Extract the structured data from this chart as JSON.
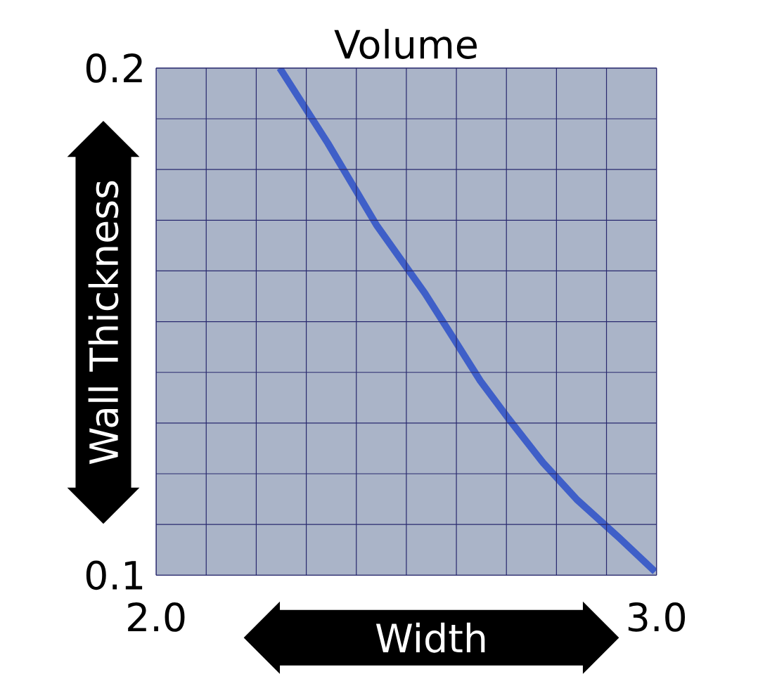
{
  "chart_data": {
    "type": "line",
    "title": "Volume",
    "xlabel": "Width",
    "ylabel": "Wall Thickness",
    "x": [
      2.247,
      2.343,
      2.44,
      2.537,
      2.593,
      2.648,
      2.704,
      2.773,
      2.842,
      2.925,
      2.997
    ],
    "series": [
      {
        "color": "#3f5fc8",
        "values": [
          0.2,
          0.1852,
          0.1691,
          0.1556,
          0.1469,
          0.1383,
          0.1309,
          0.1222,
          0.1148,
          0.1074,
          0.1007
        ]
      }
    ],
    "xlim": [
      2.0,
      3.0
    ],
    "ylim": [
      0.1,
      0.2
    ],
    "xticks": [
      {
        "value": 2.0,
        "label": "2.0"
      },
      {
        "value": 2.1,
        "label": null
      },
      {
        "value": 2.2,
        "label": null
      },
      {
        "value": 2.3,
        "label": null
      },
      {
        "value": 2.4,
        "label": null
      },
      {
        "value": 2.5,
        "label": null
      },
      {
        "value": 2.6,
        "label": null
      },
      {
        "value": 2.7,
        "label": null
      },
      {
        "value": 2.8,
        "label": null
      },
      {
        "value": 2.9,
        "label": null
      },
      {
        "value": 3.0,
        "label": "3.0"
      }
    ],
    "yticks": [
      {
        "value": 0.1,
        "label": "0.1"
      },
      {
        "value": 0.11,
        "label": null
      },
      {
        "value": 0.12,
        "label": null
      },
      {
        "value": 0.13,
        "label": null
      },
      {
        "value": 0.14,
        "label": null
      },
      {
        "value": 0.15,
        "label": null
      },
      {
        "value": 0.16,
        "label": null
      },
      {
        "value": 0.17,
        "label": null
      },
      {
        "value": 0.18,
        "label": null
      },
      {
        "value": 0.19,
        "label": null
      },
      {
        "value": 0.2,
        "label": "0.2"
      }
    ],
    "grid": true,
    "marker": "none",
    "line_style": "solid"
  }
}
